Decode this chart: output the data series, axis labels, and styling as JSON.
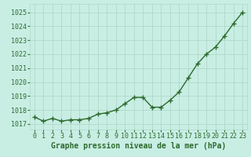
{
  "x": [
    0,
    1,
    2,
    3,
    4,
    5,
    6,
    7,
    8,
    9,
    10,
    11,
    12,
    13,
    14,
    15,
    16,
    17,
    18,
    19,
    20,
    21,
    22,
    23
  ],
  "y": [
    1017.5,
    1017.2,
    1017.4,
    1017.2,
    1017.3,
    1017.3,
    1017.4,
    1017.7,
    1017.8,
    1018.0,
    1018.45,
    1018.9,
    1018.9,
    1018.2,
    1018.2,
    1018.7,
    1019.3,
    1020.3,
    1021.3,
    1022.0,
    1022.5,
    1023.3,
    1024.2,
    1025.0
  ],
  "line_color": "#2d6a2d",
  "marker": "+",
  "marker_size": 4,
  "linewidth": 1.0,
  "bg_color": "#c8eee4",
  "grid_color": "#b0d8c8",
  "xlabel": "Graphe pression niveau de la mer (hPa)",
  "xlabel_color": "#2d6a2d",
  "xlabel_fontsize": 7,
  "tick_color": "#2d6a2d",
  "tick_fontsize": 6,
  "ylim": [
    1016.6,
    1025.6
  ],
  "xlim": [
    -0.5,
    23.5
  ],
  "yticks": [
    1017,
    1018,
    1019,
    1020,
    1021,
    1022,
    1023,
    1024,
    1025
  ],
  "xticks": [
    0,
    1,
    2,
    3,
    4,
    5,
    6,
    7,
    8,
    9,
    10,
    11,
    12,
    13,
    14,
    15,
    16,
    17,
    18,
    19,
    20,
    21,
    22,
    23
  ]
}
